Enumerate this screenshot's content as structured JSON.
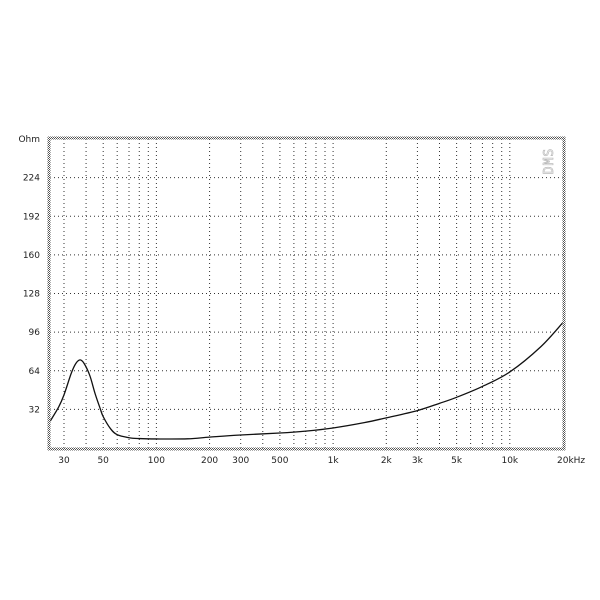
{
  "chart_data": {
    "type": "line",
    "title": "",
    "ylabel": "Ohm",
    "xlabel": "Hz",
    "x_scale": "log",
    "xlim": [
      25,
      20000
    ],
    "ylim": [
      0,
      256
    ],
    "grid": true,
    "watermark": "DMS",
    "y_ticks": [
      {
        "value": 256,
        "label": "Ohm"
      },
      {
        "value": 224,
        "label": "224"
      },
      {
        "value": 192,
        "label": "192"
      },
      {
        "value": 160,
        "label": "160"
      },
      {
        "value": 128,
        "label": "128"
      },
      {
        "value": 96,
        "label": "96"
      },
      {
        "value": 64,
        "label": "64"
      },
      {
        "value": 32,
        "label": "32"
      }
    ],
    "x_ticks": [
      {
        "value": 30,
        "label": "30"
      },
      {
        "value": 50,
        "label": "50"
      },
      {
        "value": 100,
        "label": "100"
      },
      {
        "value": 200,
        "label": "200"
      },
      {
        "value": 300,
        "label": "300"
      },
      {
        "value": 500,
        "label": "500"
      },
      {
        "value": 1000,
        "label": "1k"
      },
      {
        "value": 2000,
        "label": "2k"
      },
      {
        "value": 3000,
        "label": "3k"
      },
      {
        "value": 5000,
        "label": "5k"
      },
      {
        "value": 10000,
        "label": "10k"
      },
      {
        "value": 20000,
        "label": "20kHz"
      }
    ],
    "x_gridlines": [
      30,
      40,
      50,
      60,
      70,
      80,
      90,
      100,
      200,
      300,
      400,
      500,
      600,
      700,
      800,
      900,
      1000,
      2000,
      3000,
      4000,
      5000,
      6000,
      7000,
      8000,
      9000,
      10000
    ],
    "series": [
      {
        "color": "#111111",
        "x": [
          25,
          28,
          30,
          33,
          35,
          37,
          39,
          42,
          45,
          48,
          50,
          55,
          60,
          70,
          80,
          100,
          150,
          200,
          300,
          500,
          700,
          1000,
          1500,
          2000,
          3000,
          4000,
          5000,
          7000,
          10000,
          15000,
          20000
        ],
        "y": [
          22,
          34,
          44,
          62,
          70,
          73,
          70,
          60,
          45,
          33,
          26,
          16,
          11,
          8.5,
          7.8,
          7.5,
          7.6,
          9,
          10.8,
          12.4,
          14,
          16.6,
          21,
          25,
          31,
          37,
          42,
          51,
          63,
          84,
          104
        ]
      }
    ]
  }
}
